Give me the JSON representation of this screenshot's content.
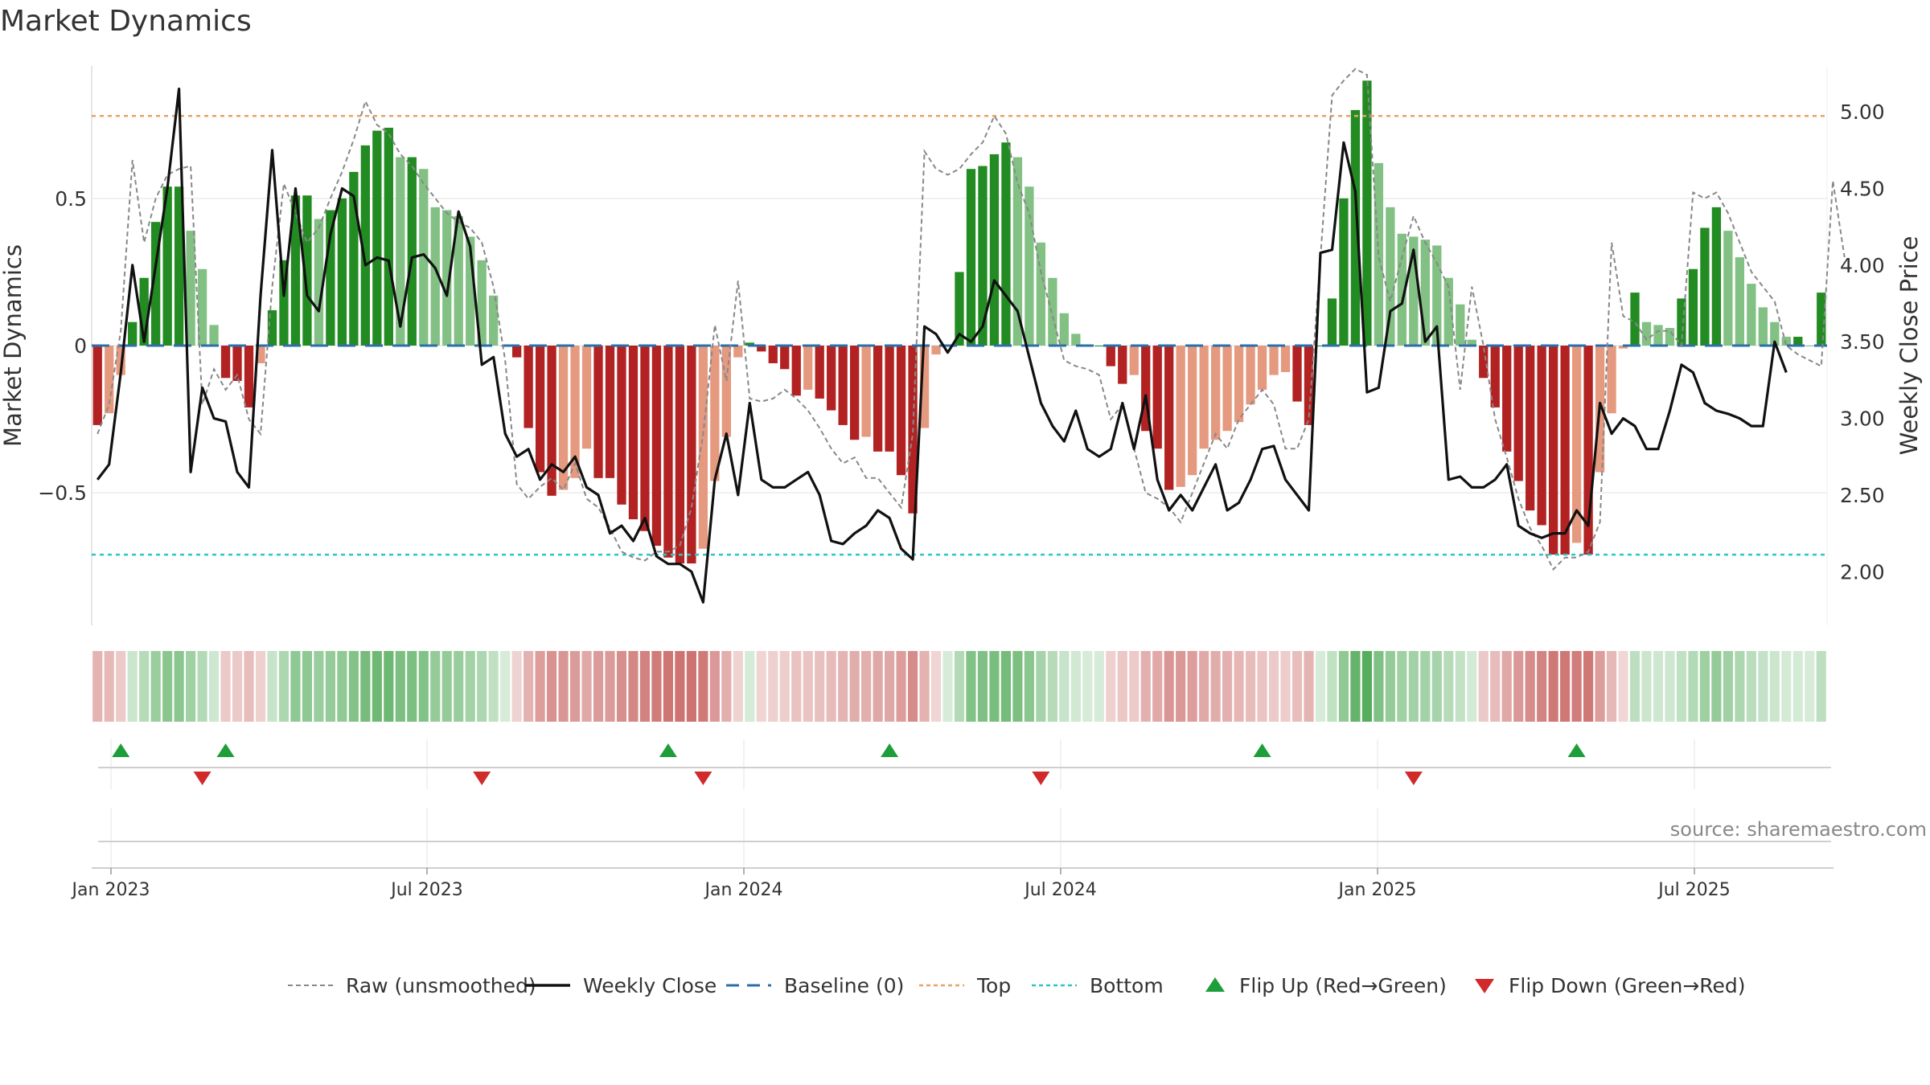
{
  "page": {
    "title": "Market Dynamics",
    "source": "source: sharemaestro.com"
  },
  "chart_data": {
    "type": "bar+line",
    "title": "Market Dynamics",
    "ylabel_left": "Market Dynamics",
    "ylabel_right": "Weekly Close Price",
    "ylim_left": [
      -0.95,
      0.95
    ],
    "ylim_right": [
      1.65,
      5.3
    ],
    "yticks_left": [
      {
        "v": 0.5,
        "t": "0.5"
      },
      {
        "v": 0,
        "t": "0"
      },
      {
        "v": -0.5,
        "t": "−0.5"
      }
    ],
    "yticks_right": [
      {
        "v": 5.0,
        "t": "5.00"
      },
      {
        "v": 4.5,
        "t": "4.50"
      },
      {
        "v": 4.0,
        "t": "4.00"
      },
      {
        "v": 3.5,
        "t": "3.50"
      },
      {
        "v": 3.0,
        "t": "3.00"
      },
      {
        "v": 2.5,
        "t": "2.50"
      },
      {
        "v": 2.0,
        "t": "2.00"
      }
    ],
    "x_ticks": [
      {
        "week": 1,
        "label": "Jan 2023"
      },
      {
        "week": 27,
        "label": "Jul 2023"
      },
      {
        "week": 53,
        "label": "Jan 2024"
      },
      {
        "week": 79,
        "label": "Jul 2024"
      },
      {
        "week": 105,
        "label": "Jan 2025"
      },
      {
        "week": 131,
        "label": "Jul 2025"
      }
    ],
    "reference_lines": {
      "top": 0.78,
      "bottom": -0.71,
      "baseline": 0
    },
    "dynamics": [
      -0.27,
      -0.23,
      -0.1,
      0.08,
      0.23,
      0.42,
      0.54,
      0.54,
      0.39,
      0.26,
      0.07,
      -0.11,
      -0.12,
      -0.21,
      -0.06,
      0.12,
      0.29,
      0.51,
      0.51,
      0.43,
      0.46,
      0.5,
      0.59,
      0.68,
      0.73,
      0.74,
      0.64,
      0.64,
      0.6,
      0.47,
      0.46,
      0.44,
      0.37,
      0.29,
      0.17,
      0.0,
      -0.04,
      -0.28,
      -0.43,
      -0.51,
      -0.49,
      -0.45,
      -0.35,
      -0.45,
      -0.45,
      -0.54,
      -0.59,
      -0.63,
      -0.68,
      -0.72,
      -0.74,
      -0.74,
      -0.69,
      -0.46,
      -0.31,
      -0.04,
      0.01,
      -0.02,
      -0.06,
      -0.08,
      -0.17,
      -0.15,
      -0.18,
      -0.22,
      -0.27,
      -0.32,
      -0.31,
      -0.36,
      -0.36,
      -0.44,
      -0.57,
      -0.28,
      -0.03,
      0.0,
      0.25,
      0.6,
      0.61,
      0.65,
      0.69,
      0.64,
      0.54,
      0.35,
      0.23,
      0.11,
      0.04,
      0.0,
      0.0,
      -0.07,
      -0.13,
      -0.1,
      -0.29,
      -0.35,
      -0.49,
      -0.48,
      -0.44,
      -0.35,
      -0.32,
      -0.29,
      -0.26,
      -0.2,
      -0.15,
      -0.1,
      -0.09,
      -0.19,
      -0.27,
      0.0,
      0.16,
      0.5,
      0.8,
      0.9,
      0.62,
      0.47,
      0.38,
      0.37,
      0.36,
      0.34,
      0.23,
      0.14,
      0.02,
      -0.11,
      -0.21,
      -0.36,
      -0.46,
      -0.56,
      -0.61,
      -0.71,
      -0.71,
      -0.67,
      -0.71,
      -0.43,
      -0.23,
      -0.01,
      0.18,
      0.08,
      0.07,
      0.06,
      0.16,
      0.26,
      0.4,
      0.47,
      0.39,
      0.3,
      0.21,
      0.13,
      0.08,
      0.03,
      0.03,
      0.0,
      0.18
    ],
    "raw": [
      -0.3,
      -0.2,
      0.05,
      0.63,
      0.35,
      0.5,
      0.58,
      0.6,
      0.61,
      -0.2,
      -0.08,
      -0.15,
      -0.1,
      -0.25,
      -0.3,
      0.2,
      0.55,
      0.45,
      0.35,
      0.4,
      0.5,
      0.59,
      0.7,
      0.83,
      0.75,
      0.72,
      0.65,
      0.61,
      0.55,
      0.5,
      0.45,
      0.42,
      0.4,
      0.35,
      0.2,
      -0.05,
      -0.47,
      -0.52,
      -0.48,
      -0.45,
      -0.49,
      -0.4,
      -0.52,
      -0.55,
      -0.62,
      -0.7,
      -0.72,
      -0.73,
      -0.7,
      -0.7,
      -0.68,
      -0.55,
      -0.3,
      0.07,
      -0.12,
      0.22,
      -0.18,
      -0.19,
      -0.18,
      -0.15,
      -0.18,
      -0.22,
      -0.28,
      -0.35,
      -0.4,
      -0.38,
      -0.45,
      -0.45,
      -0.5,
      -0.55,
      -0.3,
      0.66,
      0.6,
      0.58,
      0.6,
      0.65,
      0.69,
      0.78,
      0.72,
      0.55,
      0.45,
      0.25,
      0.1,
      -0.05,
      -0.07,
      -0.08,
      -0.1,
      -0.25,
      -0.2,
      -0.35,
      -0.5,
      -0.52,
      -0.55,
      -0.6,
      -0.5,
      -0.4,
      -0.3,
      -0.35,
      -0.25,
      -0.2,
      -0.15,
      -0.2,
      -0.35,
      -0.35,
      -0.25,
      0.3,
      0.85,
      0.9,
      0.94,
      0.92,
      0.3,
      0.15,
      0.3,
      0.44,
      0.35,
      0.28,
      0.2,
      -0.15,
      0.2,
      0.0,
      -0.25,
      -0.38,
      -0.52,
      -0.62,
      -0.68,
      -0.76,
      -0.72,
      -0.72,
      -0.7,
      -0.6,
      0.35,
      0.1,
      0.08,
      0.02,
      0.05,
      0.05,
      0.0,
      0.52,
      0.5,
      0.52,
      0.45,
      0.35,
      0.25,
      0.2,
      0.15,
      0.0,
      -0.03,
      -0.05,
      -0.07,
      0.56,
      0.3
    ],
    "weekly_close": [
      2.6,
      2.7,
      3.3,
      4.0,
      3.5,
      4.0,
      4.5,
      5.15,
      2.65,
      3.2,
      3.0,
      2.98,
      2.65,
      2.55,
      3.8,
      4.75,
      3.8,
      4.5,
      3.8,
      3.7,
      4.2,
      4.5,
      4.45,
      4.0,
      4.05,
      4.03,
      3.6,
      4.05,
      4.07,
      3.98,
      3.8,
      4.35,
      4.12,
      3.35,
      3.4,
      2.9,
      2.75,
      2.8,
      2.6,
      2.7,
      2.65,
      2.75,
      2.55,
      2.5,
      2.25,
      2.3,
      2.2,
      2.35,
      2.1,
      2.05,
      2.05,
      2.0,
      1.8,
      2.6,
      2.9,
      2.5,
      3.1,
      2.6,
      2.55,
      2.55,
      2.6,
      2.65,
      2.5,
      2.2,
      2.18,
      2.25,
      2.3,
      2.4,
      2.35,
      2.15,
      2.08,
      3.6,
      3.55,
      3.43,
      3.55,
      3.5,
      3.6,
      3.9,
      3.8,
      3.7,
      3.4,
      3.1,
      2.95,
      2.85,
      3.05,
      2.8,
      2.75,
      2.8,
      3.1,
      2.8,
      3.15,
      2.6,
      2.4,
      2.5,
      2.4,
      2.55,
      2.7,
      2.4,
      2.45,
      2.6,
      2.8,
      2.82,
      2.6,
      2.5,
      2.4,
      4.08,
      4.1,
      4.8,
      4.48,
      3.17,
      3.2,
      3.7,
      3.75,
      4.1,
      3.5,
      3.6,
      2.6,
      2.62,
      2.55,
      2.55,
      2.6,
      2.7,
      2.3,
      2.25,
      2.22,
      2.25,
      2.25,
      2.4,
      2.3,
      3.1,
      2.9,
      3.0,
      2.95,
      2.8,
      2.8,
      3.05,
      3.35,
      3.3,
      3.1,
      3.05,
      3.03,
      3.0,
      2.95,
      2.95,
      3.5,
      3.3
    ],
    "flip_up_weeks": [
      3,
      12,
      50,
      69,
      101,
      128
    ],
    "flip_down_weeks": [
      10,
      34,
      53,
      82,
      114
    ],
    "legend": [
      {
        "key": "raw",
        "label": "Raw (unsmoothed)"
      },
      {
        "key": "close",
        "label": "Weekly Close"
      },
      {
        "key": "baseline",
        "label": "Baseline (0)"
      },
      {
        "key": "top",
        "label": "Top"
      },
      {
        "key": "bottom",
        "label": "Bottom"
      },
      {
        "key": "up",
        "label": "Flip Up (Red→Green)"
      },
      {
        "key": "down",
        "label": "Flip Down (Green→Red)"
      }
    ]
  },
  "colors": {
    "green_dark": "#228b22",
    "green_light": "#82c084",
    "red_dark": "#b22222",
    "red_light": "#e59a80",
    "top_line": "#e6a46a",
    "bottom_line": "#2fc4c9",
    "baseline": "#2a6fa8",
    "close_line": "#111111",
    "raw_line": "#888888",
    "flip_up": "#1e9e3a",
    "flip_down": "#d12a2a",
    "heat_green": "#49a650",
    "heat_red": "#c0504d"
  }
}
